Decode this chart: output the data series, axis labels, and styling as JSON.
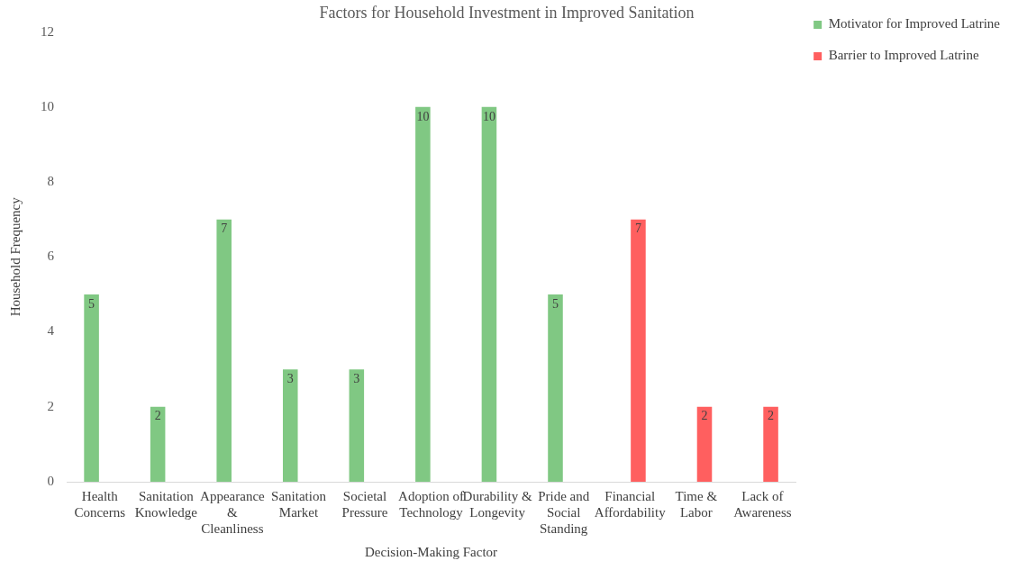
{
  "chart_data": {
    "type": "bar",
    "title": "Factors for Household Investment in Improved Sanitation",
    "xlabel": "Decision-Making Factor",
    "ylabel": "Household Frequency",
    "categories": [
      "Health Concerns",
      "Sanitation Knowledge",
      "Appearance & Cleanliness",
      "Sanitation Market",
      "Societal Pressure",
      "Adoption of Technology",
      "Durability & Longevity",
      "Pride and Social Standing",
      "Financial Affordability",
      "Time & Labor",
      "Lack of Awareness"
    ],
    "series": [
      {
        "name": "Motivator for Improved Latrine",
        "color": "#80c883",
        "values": [
          5,
          2,
          7,
          3,
          3,
          10,
          10,
          5,
          null,
          null,
          null
        ]
      },
      {
        "name": "Barrier to Improved Latrine",
        "color": "#ff5f5f",
        "values": [
          null,
          null,
          null,
          null,
          null,
          null,
          null,
          null,
          7,
          2,
          2
        ]
      }
    ],
    "ylim": [
      0,
      12
    ],
    "yticks": [
      0,
      2,
      4,
      6,
      8,
      10,
      12
    ],
    "grid": false,
    "legend": "top right",
    "data_labels": true
  }
}
